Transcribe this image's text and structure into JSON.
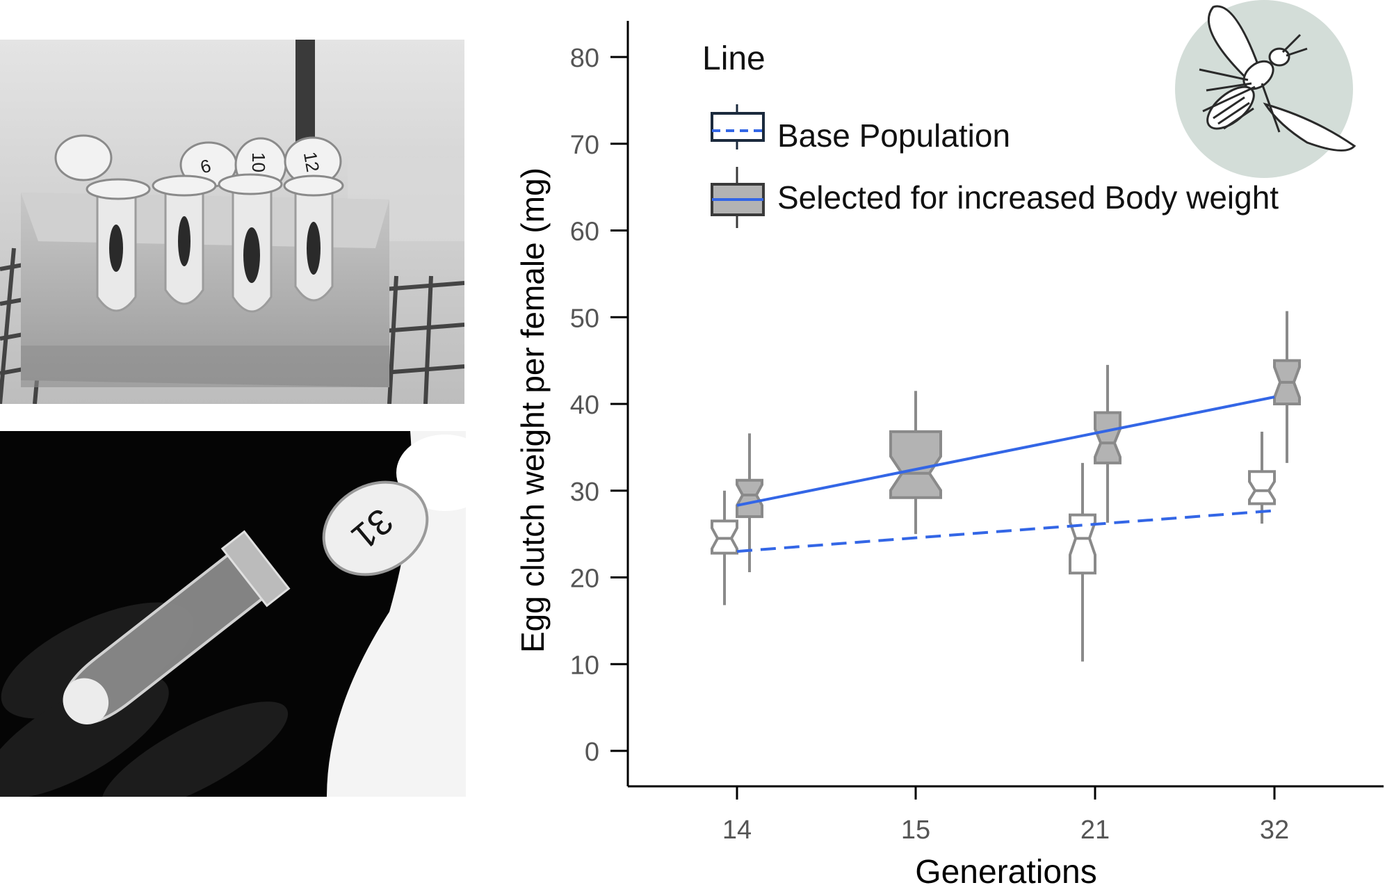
{
  "chart_data": {
    "type": "box",
    "ylabel": "Egg clutch weight per female (mg)",
    "xlabel": "Generations",
    "ylim": [
      0,
      80
    ],
    "yticks": [
      0,
      10,
      20,
      30,
      40,
      50,
      60,
      70,
      80
    ],
    "categories": [
      "14",
      "15",
      "21",
      "32"
    ],
    "legend": {
      "title": "Line",
      "position": "top-left",
      "entries": [
        "Base Population",
        "Selected for increased Body weight"
      ]
    },
    "series": [
      {
        "name": "Base Population",
        "fill": "#ffffff",
        "stroke": "#8a8a8a",
        "boxes": [
          {
            "generation": "14",
            "min": 16.8,
            "q1": 22.8,
            "median": 24.5,
            "q3": 26.5,
            "max": 30.0
          },
          {
            "generation": "21",
            "min": 10.3,
            "q1": 20.5,
            "median": 24.5,
            "q3": 27.2,
            "max": 33.2
          },
          {
            "generation": "32",
            "min": 26.2,
            "q1": 28.5,
            "median": 30.0,
            "q3": 32.2,
            "max": 36.8
          }
        ],
        "trend": {
          "style": "dashed",
          "color": "#3366e6",
          "from": {
            "generation": "14",
            "y": 23.0
          },
          "to": {
            "generation": "32",
            "y": 27.7
          }
        }
      },
      {
        "name": "Selected for increased Body weight",
        "fill": "#b3b3b3",
        "stroke": "#8a8a8a",
        "boxes": [
          {
            "generation": "14",
            "min": 20.6,
            "q1": 27.0,
            "median": 29.5,
            "q3": 31.2,
            "max": 36.6
          },
          {
            "generation": "15",
            "min": 25.0,
            "q1": 29.2,
            "median": 32.0,
            "q3": 36.8,
            "max": 41.5
          },
          {
            "generation": "21",
            "min": 26.3,
            "q1": 33.2,
            "median": 35.5,
            "q3": 39.0,
            "max": 44.5
          },
          {
            "generation": "32",
            "min": 33.2,
            "q1": 40.0,
            "median": 42.5,
            "q3": 45.0,
            "max": 50.7
          }
        ],
        "trend": {
          "style": "solid",
          "color": "#3366e6",
          "from": {
            "generation": "14",
            "y": 28.3
          },
          "to": {
            "generation": "32",
            "y": 40.8
          }
        }
      }
    ]
  },
  "photos": [
    {
      "name": "tube-rack-photo",
      "tube_labels": [
        "6",
        "10",
        "12"
      ]
    },
    {
      "name": "single-tube-photo",
      "tube_label": "31"
    }
  ],
  "icon": {
    "name": "fly-icon",
    "circle_color": "#d3ddd8"
  }
}
